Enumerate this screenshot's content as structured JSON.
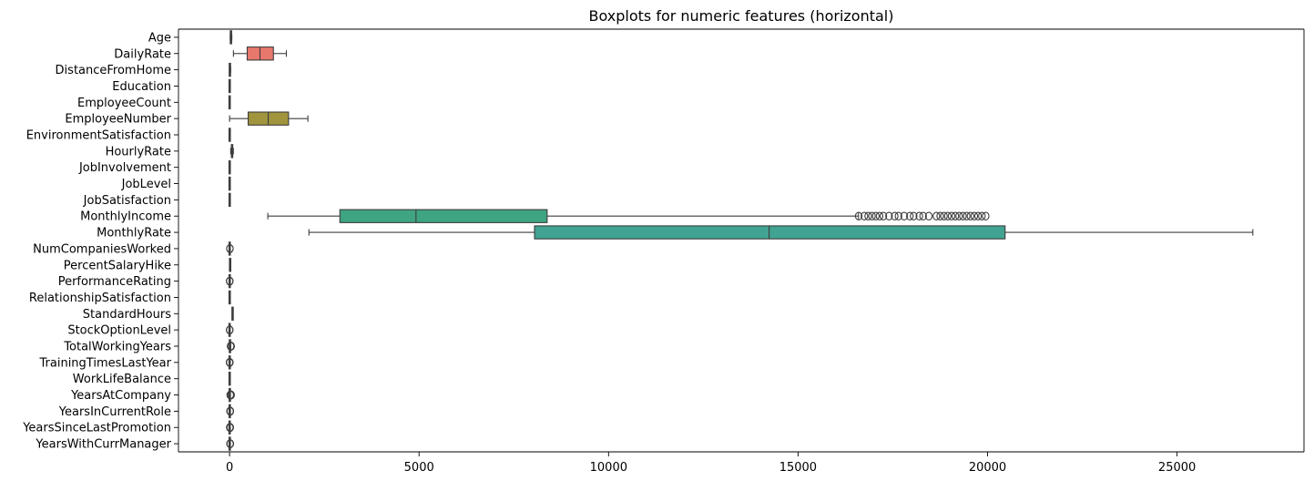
{
  "chart_data": {
    "type": "boxplot",
    "orientation": "horizontal",
    "title": "Boxplots for numeric features (horizontal)",
    "xlabel": "",
    "ylabel": "",
    "xlim": [
      -1348,
      28349
    ],
    "xticks": [
      0,
      5000,
      10000,
      15000,
      20000,
      25000
    ],
    "grid": false,
    "legend": "none",
    "features": [
      {
        "name": "Age",
        "color": "#6f8fc4",
        "whisker_low": 18,
        "q1": 30,
        "median": 36,
        "q3": 43,
        "whisker_high": 60,
        "outliers": []
      },
      {
        "name": "DailyRate",
        "color": "#e8776c",
        "whisker_low": 102,
        "q1": 465,
        "median": 802,
        "q3": 1157,
        "whisker_high": 1499,
        "outliers": []
      },
      {
        "name": "DistanceFromHome",
        "color": "#d99a4e",
        "whisker_low": 1,
        "q1": 2,
        "median": 7,
        "q3": 14,
        "whisker_high": 29,
        "outliers": []
      },
      {
        "name": "Education",
        "color": "#c49e3c",
        "whisker_low": 1,
        "q1": 2,
        "median": 3,
        "q3": 4,
        "whisker_high": 5,
        "outliers": []
      },
      {
        "name": "EmployeeCount",
        "color": "#b3a13a",
        "whisker_low": 1,
        "q1": 1,
        "median": 1,
        "q3": 1,
        "whisker_high": 1,
        "outliers": []
      },
      {
        "name": "EmployeeNumber",
        "color": "#a0943d",
        "whisker_low": 1,
        "q1": 491,
        "median": 1020,
        "q3": 1556,
        "whisker_high": 2068,
        "outliers": []
      },
      {
        "name": "EnvironmentSatisfaction",
        "color": "#8ea53c",
        "whisker_low": 1,
        "q1": 2,
        "median": 3,
        "q3": 4,
        "whisker_high": 4,
        "outliers": []
      },
      {
        "name": "HourlyRate",
        "color": "#6ba843",
        "whisker_low": 30,
        "q1": 48,
        "median": 66,
        "q3": 84,
        "whisker_high": 100,
        "outliers": []
      },
      {
        "name": "JobInvolvement",
        "color": "#4faa5e",
        "whisker_low": 1,
        "q1": 2,
        "median": 3,
        "q3": 3,
        "whisker_high": 4,
        "outliers": []
      },
      {
        "name": "JobLevel",
        "color": "#45a97c",
        "whisker_low": 1,
        "q1": 1,
        "median": 2,
        "q3": 3,
        "whisker_high": 5,
        "outliers": []
      },
      {
        "name": "JobSatisfaction",
        "color": "#41a98a",
        "whisker_low": 1,
        "q1": 2,
        "median": 3,
        "q3": 4,
        "whisker_high": 4,
        "outliers": []
      },
      {
        "name": "MonthlyIncome",
        "color": "#3ea481",
        "whisker_low": 1009,
        "q1": 2911,
        "median": 4919,
        "q3": 8379,
        "whisker_high": 16595,
        "outliers": [
          16600,
          16750,
          16850,
          16950,
          17050,
          17150,
          17250,
          17400,
          17550,
          17650,
          17800,
          17950,
          18050,
          18200,
          18300,
          18450,
          18650,
          18750,
          18850,
          18950,
          19050,
          19150,
          19250,
          19350,
          19450,
          19550,
          19650,
          19750,
          19850,
          19950
        ]
      },
      {
        "name": "MonthlyRate",
        "color": "#41a391",
        "whisker_low": 2094,
        "q1": 8047,
        "median": 14236,
        "q3": 20462,
        "whisker_high": 26999,
        "outliers": []
      },
      {
        "name": "NumCompaniesWorked",
        "color": "#43a59e",
        "whisker_low": 0,
        "q1": 1,
        "median": 2,
        "q3": 4,
        "whisker_high": 8,
        "outliers": [
          9,
          9
        ]
      },
      {
        "name": "PercentSalaryHike",
        "color": "#48a5ac",
        "whisker_low": 11,
        "q1": 12,
        "median": 14,
        "q3": 18,
        "whisker_high": 25,
        "outliers": []
      },
      {
        "name": "PerformanceRating",
        "color": "#4da4b9",
        "whisker_low": 3,
        "q1": 3,
        "median": 3,
        "q3": 3,
        "whisker_high": 3,
        "outliers": [
          4,
          4
        ]
      },
      {
        "name": "RelationshipSatisfaction",
        "color": "#55a1c7",
        "whisker_low": 1,
        "q1": 2,
        "median": 3,
        "q3": 4,
        "whisker_high": 4,
        "outliers": []
      },
      {
        "name": "StandardHours",
        "color": "#5f9bd4",
        "whisker_low": 80,
        "q1": 80,
        "median": 80,
        "q3": 80,
        "whisker_high": 80,
        "outliers": []
      },
      {
        "name": "StockOptionLevel",
        "color": "#7b93da",
        "whisker_low": 0,
        "q1": 0,
        "median": 1,
        "q3": 1,
        "whisker_high": 2,
        "outliers": [
          3,
          3
        ]
      },
      {
        "name": "TotalWorkingYears",
        "color": "#9a8cda",
        "whisker_low": 0,
        "q1": 6,
        "median": 10,
        "q3": 15,
        "whisker_high": 28,
        "outliers": [
          29,
          31,
          33,
          35,
          37,
          40
        ]
      },
      {
        "name": "TrainingTimesLastYear",
        "color": "#b284d4",
        "whisker_low": 1,
        "q1": 2,
        "median": 3,
        "q3": 3,
        "whisker_high": 4,
        "outliers": [
          0,
          5,
          6
        ]
      },
      {
        "name": "WorkLifeBalance",
        "color": "#c57ac7",
        "whisker_low": 1,
        "q1": 2,
        "median": 3,
        "q3": 3,
        "whisker_high": 4,
        "outliers": []
      },
      {
        "name": "YearsAtCompany",
        "color": "#d373b6",
        "whisker_low": 0,
        "q1": 3,
        "median": 5,
        "q3": 9,
        "whisker_high": 18,
        "outliers": [
          19,
          21,
          24,
          27,
          30,
          33,
          36,
          40
        ]
      },
      {
        "name": "YearsInCurrentRole",
        "color": "#dc6fa6",
        "whisker_low": 0,
        "q1": 2,
        "median": 3,
        "q3": 7,
        "whisker_high": 14,
        "outliers": [
          15,
          16,
          17,
          18
        ]
      },
      {
        "name": "YearsSinceLastPromotion",
        "color": "#e36d93",
        "whisker_low": 0,
        "q1": 0,
        "median": 1,
        "q3": 3,
        "whisker_high": 7,
        "outliers": [
          8,
          9,
          10,
          11,
          12,
          13,
          14,
          15
        ]
      },
      {
        "name": "YearsWithCurrManager",
        "color": "#e86e80",
        "whisker_low": 0,
        "q1": 2,
        "median": 3,
        "q3": 7,
        "whisker_high": 14,
        "outliers": [
          15,
          16,
          17
        ]
      }
    ]
  }
}
